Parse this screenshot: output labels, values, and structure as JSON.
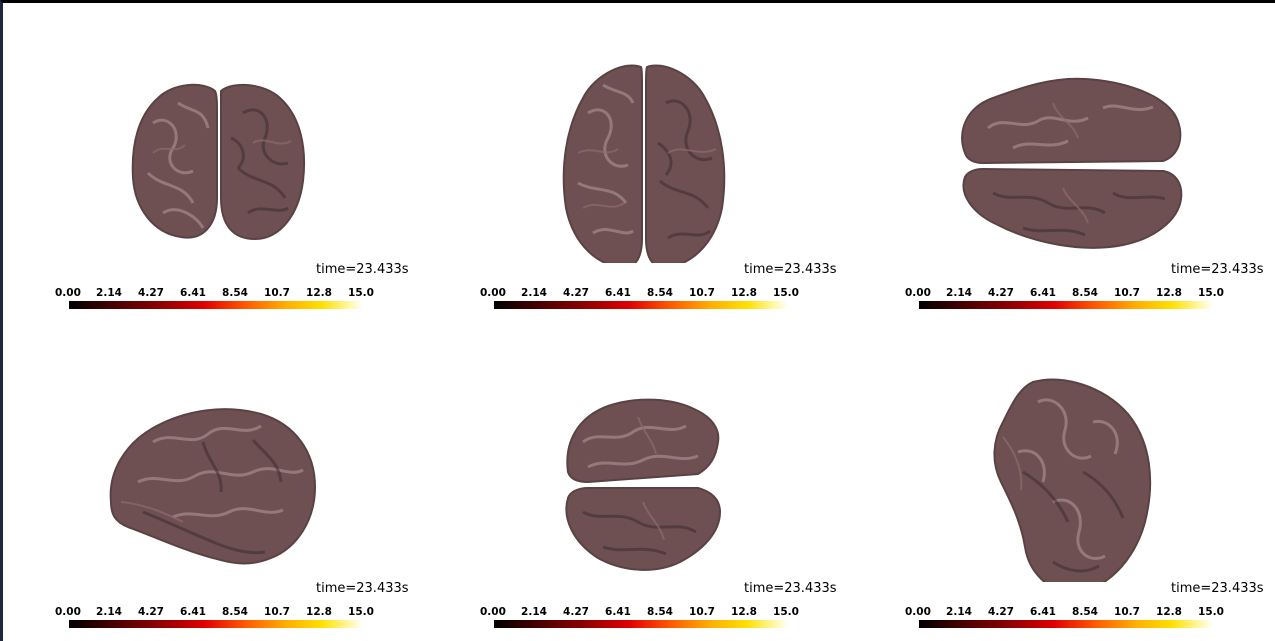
{
  "colors": {
    "background": "#ffffff",
    "brain_fill": "#6e5052",
    "brain_highlight": "#b49a9a",
    "brain_shadow": "#3e2c2e",
    "colorbar_stops": [
      "#000000",
      "#8a0000",
      "#e00000",
      "#ff5a00",
      "#ffb000",
      "#ffe000",
      "#ffffff"
    ]
  },
  "views": [
    {
      "view": "frontal",
      "time_label": "time=23.433s",
      "colorbar_ticks": [
        "0.00",
        "2.14",
        "4.27",
        "6.41",
        "8.54",
        "10.7",
        "12.8",
        "15.0"
      ]
    },
    {
      "view": "dorsal",
      "time_label": "time=23.433s",
      "colorbar_ticks": [
        "0.00",
        "2.14",
        "4.27",
        "6.41",
        "8.54",
        "10.7",
        "12.8",
        "15.0"
      ]
    },
    {
      "view": "ventral",
      "time_label": "time=23.433s",
      "colorbar_ticks": [
        "0.00",
        "2.14",
        "4.27",
        "6.41",
        "8.54",
        "10.7",
        "12.8",
        "15.0"
      ]
    },
    {
      "view": "lateral",
      "time_label": "time=23.433s",
      "colorbar_ticks": [
        "0.00",
        "2.14",
        "4.27",
        "6.41",
        "8.54",
        "10.7",
        "12.8",
        "15.0"
      ]
    },
    {
      "view": "caudal",
      "time_label": "time=23.433s",
      "colorbar_ticks": [
        "0.00",
        "2.14",
        "4.27",
        "6.41",
        "8.54",
        "10.7",
        "12.8",
        "15.0"
      ]
    },
    {
      "view": "medial",
      "time_label": "time=23.433s",
      "colorbar_ticks": [
        "0.00",
        "2.14",
        "4.27",
        "6.41",
        "8.54",
        "10.7",
        "12.8",
        "15.0"
      ]
    }
  ]
}
